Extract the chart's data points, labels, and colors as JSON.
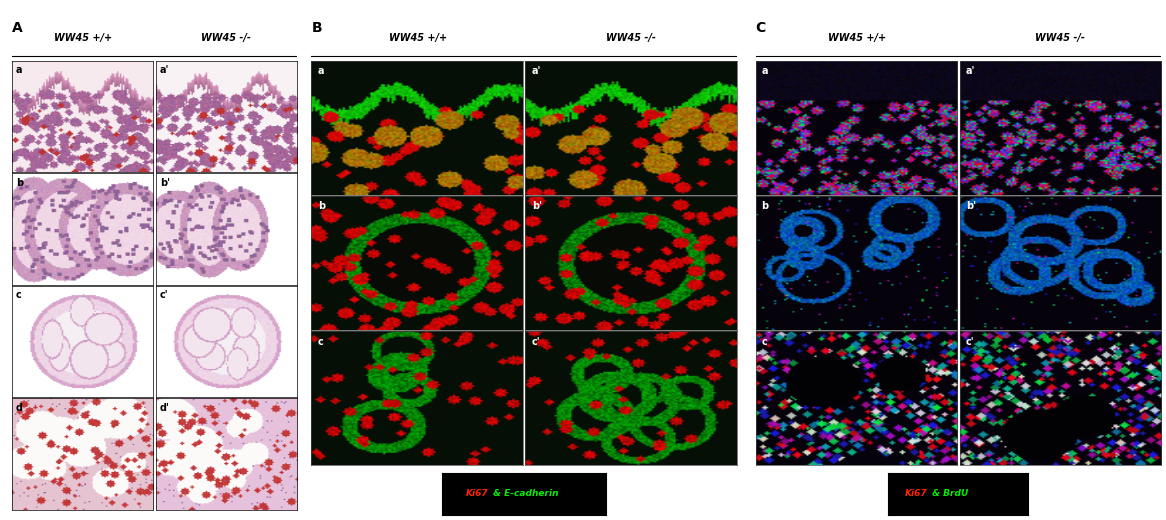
{
  "fig_width": 11.66,
  "fig_height": 5.2,
  "background_color": "#ffffff",
  "panel_A": {
    "label": "A",
    "col_labels": [
      "WW45 +/+",
      "WW45 -/-"
    ],
    "row_labels": [
      "a",
      "b",
      "c",
      "d"
    ],
    "row_labels_prime": [
      "a'",
      "b'",
      "c'",
      "d'"
    ]
  },
  "panel_B": {
    "label": "B",
    "col_labels": [
      "WW45 +/+",
      "WW45 -/-"
    ],
    "row_labels": [
      "a",
      "b",
      "c"
    ],
    "row_labels_prime": [
      "a'",
      "b'",
      "c'"
    ],
    "legend_ki67_color": "#ff2200",
    "legend_ecad_color": "#00ee00",
    "legend_text1": "Ki67",
    "legend_text2": " & E-cadherin"
  },
  "panel_C": {
    "label": "C",
    "col_labels": [
      "WW45 +/+",
      "WW45 -/-"
    ],
    "row_labels": [
      "a",
      "b",
      "c"
    ],
    "row_labels_prime": [
      "a'",
      "b'",
      "c'"
    ],
    "legend_ki67_color": "#ff2200",
    "legend_brdu_color": "#00ee00",
    "legend_text1": "Ki67",
    "legend_text2": " & BrdU"
  },
  "label_fontsize": 10,
  "sublabel_fontsize": 7,
  "header_fontsize": 7,
  "legend_fontsize": 6.5
}
